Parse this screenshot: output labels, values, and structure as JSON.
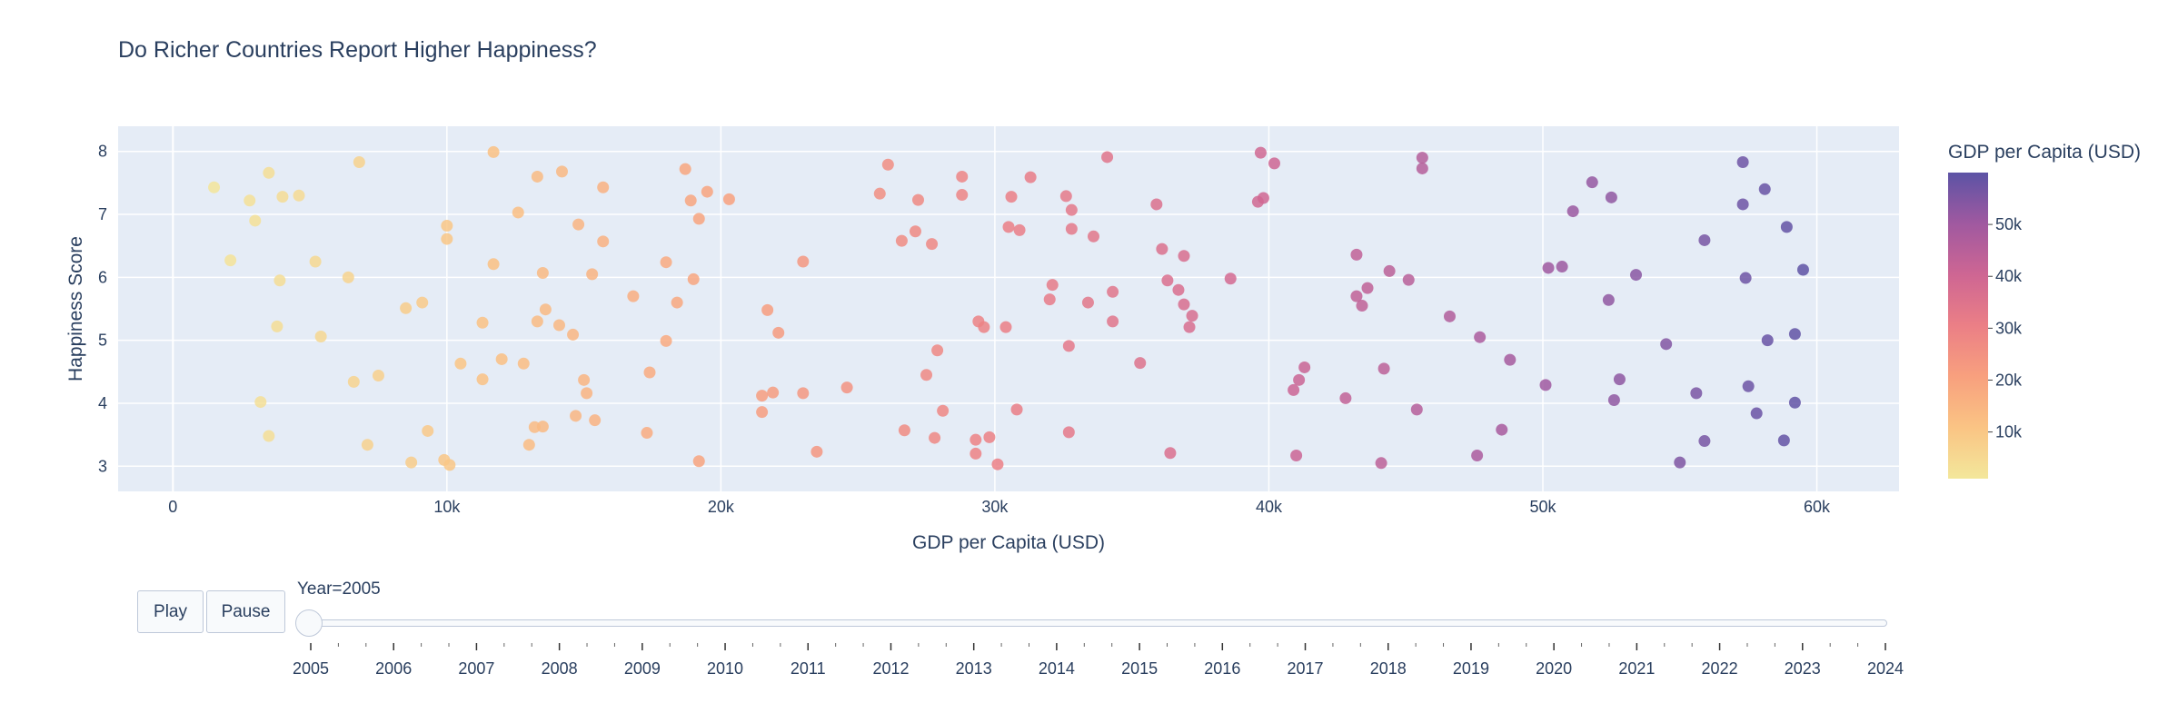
{
  "chart_data": {
    "type": "scatter",
    "title": "Do Richer Countries Report Higher Happiness?",
    "xlabel": "GDP per Capita (USD)",
    "ylabel": "Happiness Score",
    "xlim": [
      -2000,
      63000
    ],
    "ylim": [
      2.6,
      8.4
    ],
    "x_ticks": [
      0,
      10000,
      20000,
      30000,
      40000,
      50000,
      60000
    ],
    "x_tick_labels": [
      "0",
      "10k",
      "20k",
      "30k",
      "40k",
      "50k",
      "60k"
    ],
    "y_ticks": [
      3,
      4,
      5,
      6,
      7,
      8
    ],
    "y_tick_labels": [
      "3",
      "4",
      "5",
      "6",
      "7",
      "8"
    ],
    "grid": true,
    "colorbar": {
      "title": "GDP per Capita (USD)",
      "min": 1000,
      "max": 60000,
      "ticks": [
        10000,
        20000,
        30000,
        40000,
        50000
      ],
      "tick_labels": [
        "10k",
        "20k",
        "30k",
        "40k",
        "50k"
      ],
      "colors": [
        "#f3e79b",
        "#fac484",
        "#f8a07e",
        "#eb7f86",
        "#ce6693",
        "#a059a0",
        "#5c53a5"
      ]
    },
    "points": [
      [
        1500,
        7.43
      ],
      [
        2100,
        6.27
      ],
      [
        2800,
        7.22
      ],
      [
        3000,
        6.9
      ],
      [
        3200,
        4.02
      ],
      [
        3500,
        7.66
      ],
      [
        3500,
        3.48
      ],
      [
        3800,
        5.22
      ],
      [
        3900,
        5.95
      ],
      [
        4000,
        7.28
      ],
      [
        4600,
        7.3
      ],
      [
        5200,
        6.25
      ],
      [
        5400,
        5.06
      ],
      [
        6400,
        6.0
      ],
      [
        6600,
        4.34
      ],
      [
        6800,
        7.83
      ],
      [
        7100,
        3.34
      ],
      [
        7500,
        4.44
      ],
      [
        8500,
        5.51
      ],
      [
        8700,
        3.06
      ],
      [
        9100,
        5.6
      ],
      [
        9300,
        3.56
      ],
      [
        9900,
        3.1
      ],
      [
        10000,
        6.82
      ],
      [
        10000,
        6.61
      ],
      [
        10100,
        3.02
      ],
      [
        10500,
        4.63
      ],
      [
        11300,
        5.28
      ],
      [
        11300,
        4.38
      ],
      [
        11700,
        7.99
      ],
      [
        11700,
        6.21
      ],
      [
        12000,
        4.7
      ],
      [
        12600,
        7.03
      ],
      [
        12800,
        4.63
      ],
      [
        13000,
        3.34
      ],
      [
        13200,
        3.62
      ],
      [
        13300,
        5.3
      ],
      [
        13300,
        7.6
      ],
      [
        13500,
        6.07
      ],
      [
        13500,
        3.63
      ],
      [
        13600,
        5.49
      ],
      [
        14100,
        5.24
      ],
      [
        14200,
        7.68
      ],
      [
        14600,
        5.09
      ],
      [
        14700,
        3.8
      ],
      [
        14800,
        6.84
      ],
      [
        15000,
        4.37
      ],
      [
        15100,
        4.16
      ],
      [
        15300,
        6.05
      ],
      [
        15400,
        3.73
      ],
      [
        15700,
        6.57
      ],
      [
        15700,
        7.43
      ],
      [
        16800,
        5.7
      ],
      [
        17300,
        3.53
      ],
      [
        17400,
        4.49
      ],
      [
        18000,
        4.99
      ],
      [
        18000,
        6.24
      ],
      [
        18400,
        5.6
      ],
      [
        18700,
        7.72
      ],
      [
        18900,
        7.22
      ],
      [
        19000,
        5.97
      ],
      [
        19200,
        6.93
      ],
      [
        19200,
        3.08
      ],
      [
        19500,
        7.36
      ],
      [
        20300,
        7.24
      ],
      [
        21500,
        4.12
      ],
      [
        21500,
        3.86
      ],
      [
        21700,
        5.48
      ],
      [
        21900,
        4.17
      ],
      [
        22100,
        5.12
      ],
      [
        23000,
        6.25
      ],
      [
        23000,
        4.16
      ],
      [
        23500,
        3.23
      ],
      [
        24600,
        4.25
      ],
      [
        25800,
        7.33
      ],
      [
        26100,
        7.79
      ],
      [
        26600,
        6.58
      ],
      [
        26700,
        3.57
      ],
      [
        27100,
        6.73
      ],
      [
        27200,
        7.23
      ],
      [
        27500,
        4.45
      ],
      [
        27700,
        6.53
      ],
      [
        27800,
        3.45
      ],
      [
        27900,
        4.84
      ],
      [
        28100,
        3.88
      ],
      [
        28800,
        7.6
      ],
      [
        28800,
        7.31
      ],
      [
        29300,
        3.42
      ],
      [
        29300,
        3.2
      ],
      [
        29400,
        5.3
      ],
      [
        29600,
        5.21
      ],
      [
        29800,
        3.46
      ],
      [
        30100,
        3.03
      ],
      [
        30400,
        5.21
      ],
      [
        30500,
        6.8
      ],
      [
        30600,
        7.28
      ],
      [
        30800,
        3.9
      ],
      [
        30900,
        6.75
      ],
      [
        31300,
        7.59
      ],
      [
        32000,
        5.65
      ],
      [
        32100,
        5.88
      ],
      [
        32600,
        7.29
      ],
      [
        32700,
        4.91
      ],
      [
        32700,
        3.54
      ],
      [
        32800,
        6.77
      ],
      [
        32800,
        7.07
      ],
      [
        33400,
        5.6
      ],
      [
        33600,
        6.65
      ],
      [
        34100,
        7.91
      ],
      [
        34300,
        5.3
      ],
      [
        34300,
        5.77
      ],
      [
        35300,
        4.64
      ],
      [
        35900,
        7.16
      ],
      [
        36100,
        6.45
      ],
      [
        36300,
        5.95
      ],
      [
        36400,
        3.21
      ],
      [
        36700,
        5.8
      ],
      [
        36900,
        6.34
      ],
      [
        36900,
        5.57
      ],
      [
        37100,
        5.21
      ],
      [
        37200,
        5.39
      ],
      [
        38600,
        5.98
      ],
      [
        39600,
        7.2
      ],
      [
        39700,
        7.98
      ],
      [
        39800,
        7.26
      ],
      [
        40200,
        7.81
      ],
      [
        40900,
        4.21
      ],
      [
        41000,
        3.17
      ],
      [
        41100,
        4.37
      ],
      [
        41300,
        4.57
      ],
      [
        42800,
        4.08
      ],
      [
        43200,
        6.36
      ],
      [
        43200,
        5.7
      ],
      [
        43400,
        5.55
      ],
      [
        43600,
        5.83
      ],
      [
        44100,
        3.05
      ],
      [
        44200,
        4.55
      ],
      [
        44400,
        6.1
      ],
      [
        45100,
        5.96
      ],
      [
        45400,
        3.9
      ],
      [
        45600,
        7.73
      ],
      [
        45600,
        7.9
      ],
      [
        46600,
        5.38
      ],
      [
        47600,
        3.17
      ],
      [
        47700,
        5.05
      ],
      [
        48500,
        3.58
      ],
      [
        48800,
        4.69
      ],
      [
        50100,
        4.29
      ],
      [
        50200,
        6.15
      ],
      [
        50700,
        6.17
      ],
      [
        51100,
        7.05
      ],
      [
        51800,
        7.51
      ],
      [
        52400,
        5.64
      ],
      [
        52500,
        7.27
      ],
      [
        52600,
        4.05
      ],
      [
        52800,
        4.38
      ],
      [
        53400,
        6.04
      ],
      [
        54500,
        4.94
      ],
      [
        55000,
        3.06
      ],
      [
        55600,
        4.16
      ],
      [
        55900,
        3.4
      ],
      [
        55900,
        6.59
      ],
      [
        57300,
        7.16
      ],
      [
        57300,
        7.83
      ],
      [
        57400,
        5.99
      ],
      [
        57500,
        4.27
      ],
      [
        57800,
        3.84
      ],
      [
        58100,
        7.4
      ],
      [
        58200,
        5.0
      ],
      [
        58800,
        3.41
      ],
      [
        58900,
        6.8
      ],
      [
        59200,
        4.01
      ],
      [
        59200,
        5.1
      ],
      [
        59500,
        6.12
      ]
    ]
  },
  "animation": {
    "play_label": "Play",
    "pause_label": "Pause",
    "current_label": "Year=2005",
    "years": [
      "2005",
      "2006",
      "2007",
      "2008",
      "2009",
      "2010",
      "2011",
      "2012",
      "2013",
      "2014",
      "2015",
      "2016",
      "2017",
      "2018",
      "2019",
      "2020",
      "2021",
      "2022",
      "2023",
      "2024"
    ]
  }
}
